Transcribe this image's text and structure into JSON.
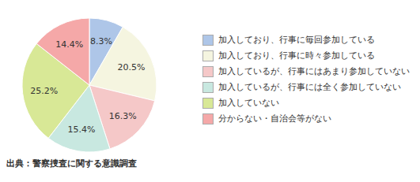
{
  "chart_data": {
    "type": "pie",
    "categories": [
      "加入しており、行事に毎回参加している",
      "加入しており、行事に時々参加している",
      "加入しているが、行事にはあまり参加していない",
      "加入しているが、行事には全く参加していない",
      "加入していない",
      "分からない・自治会等がない"
    ],
    "values": [
      8.3,
      20.5,
      16.3,
      15.4,
      25.2,
      14.4
    ],
    "value_labels": [
      "8.3%",
      "20.5%",
      "16.3%",
      "15.4%",
      "25.2%",
      "14.4%"
    ],
    "colors": [
      "#aec6e8",
      "#f5f5e0",
      "#f5c8c8",
      "#c8e8e0",
      "#d8e896",
      "#f5a8a8"
    ],
    "data_labels": true,
    "legend": "right",
    "annotations": [
      "出典：警察捜査に関する意識調査"
    ]
  }
}
